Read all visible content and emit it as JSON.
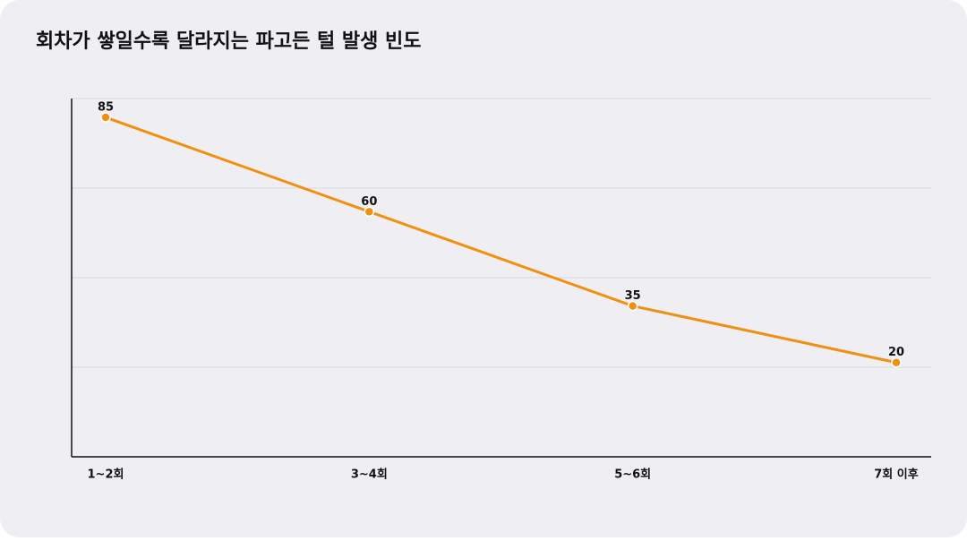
{
  "chart_data": {
    "type": "line",
    "title": "회차가 쌓일수록 달라지는 파고든 털 발생 빈도",
    "categories": [
      "1~2회",
      "3~4회",
      "5~6회",
      "7회 이후"
    ],
    "values": [
      85,
      60,
      35,
      20
    ],
    "color": "#f0900f",
    "ylim": [
      -5,
      90
    ],
    "grid": true
  }
}
